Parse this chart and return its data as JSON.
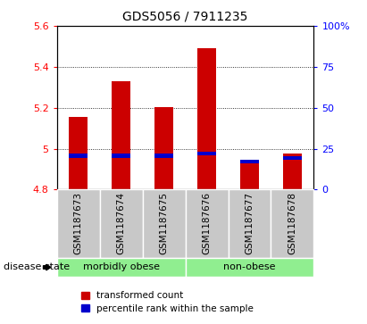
{
  "title": "GDS5056 / 7911235",
  "samples": [
    "GSM1187673",
    "GSM1187674",
    "GSM1187675",
    "GSM1187676",
    "GSM1187677",
    "GSM1187678"
  ],
  "red_values": [
    5.155,
    5.33,
    5.205,
    5.49,
    4.945,
    4.975
  ],
  "blue_values": [
    4.965,
    4.965,
    4.965,
    4.975,
    4.935,
    4.955
  ],
  "bar_base": 4.8,
  "ylim_left": [
    4.8,
    5.6
  ],
  "ylim_right": [
    0,
    100
  ],
  "yticks_left": [
    4.8,
    5.0,
    5.2,
    5.4,
    5.6
  ],
  "yticks_right": [
    0,
    25,
    50,
    75,
    100
  ],
  "ytick_labels_left": [
    "4.8",
    "5",
    "5.2",
    "5.4",
    "5.6"
  ],
  "ytick_labels_right": [
    "0",
    "25",
    "50",
    "75",
    "100%"
  ],
  "groups": [
    {
      "label": "morbidly obese",
      "indices": [
        0,
        1,
        2
      ],
      "color": "#90ee90"
    },
    {
      "label": "non-obese",
      "indices": [
        3,
        4,
        5
      ],
      "color": "#90ee90"
    }
  ],
  "disease_state_label": "disease state",
  "legend_red": "transformed count",
  "legend_blue": "percentile rank within the sample",
  "red_color": "#cc0000",
  "blue_color": "#0000cc",
  "bar_width": 0.45,
  "grid_color": "black",
  "label_area_color": "#c8c8c8",
  "grid_lines": [
    5.0,
    5.2,
    5.4
  ]
}
